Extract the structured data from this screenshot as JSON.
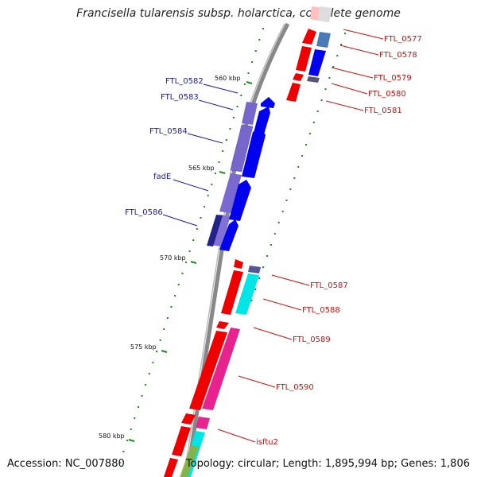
{
  "title": "Francisella tularensis subsp. holarctica, complete genome",
  "footer": {
    "accession": "Accession: NC_007880",
    "summary": "Topology: circular; Length: 1,895,994 bp; Genes: 1,806"
  },
  "ticks": [
    {
      "label": "560 kbp"
    },
    {
      "label": "565 kbp"
    },
    {
      "label": "570 kbp"
    },
    {
      "label": "575 kbp"
    },
    {
      "label": "580 kbp"
    }
  ],
  "left_genes": [
    {
      "label": "FTL_0582"
    },
    {
      "label": "FTL_0583"
    },
    {
      "label": "FTL_0584"
    },
    {
      "label": "fadE"
    },
    {
      "label": "FTL_0586"
    }
  ],
  "right_genes": [
    {
      "label": "FTL_0577"
    },
    {
      "label": "FTL_0578"
    },
    {
      "label": "FTL_0579"
    },
    {
      "label": "FTL_0580"
    },
    {
      "label": "FTL_0581"
    },
    {
      "label": "FTL_0587"
    },
    {
      "label": "FTL_0588"
    },
    {
      "label": "FTL_0589"
    },
    {
      "label": "FTL_0590"
    },
    {
      "label": "isftu2"
    }
  ],
  "colors": {
    "forward_strand": "#0000ee",
    "reverse_strand": "#ee0000",
    "cog_blue": "#7766cc",
    "cyan": "#00e5e5",
    "magenta": "#e8238f",
    "label_blue": "#1a1aaa",
    "label_red": "#cc1111",
    "tick_green": "#1e8a1e",
    "backbone": "#888888"
  }
}
